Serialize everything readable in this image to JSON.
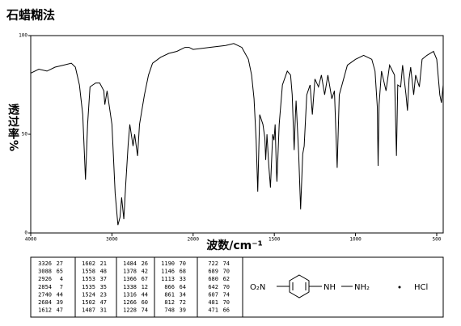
{
  "chart_data": {
    "type": "line",
    "title": "石蜡糊法",
    "x_label": "波数/cm⁻¹",
    "y_label": "透过率%",
    "xlim": [
      4000,
      460
    ],
    "xticks": [
      4000,
      3000,
      2000,
      1500,
      1000,
      500
    ],
    "ylim": [
      0,
      100
    ],
    "yticks": [
      0,
      50,
      100
    ],
    "series": [
      {
        "color": "#000000",
        "x": [
          4000,
          3900,
          3800,
          3700,
          3600,
          3500,
          3450,
          3400,
          3360,
          3326,
          3300,
          3270,
          3200,
          3150,
          3100,
          3088,
          3060,
          3000,
          2960,
          2926,
          2900,
          2880,
          2854,
          2830,
          2800,
          2780,
          2740,
          2720,
          2684,
          2660,
          2600,
          2550,
          2500,
          2400,
          2300,
          2200,
          2100,
          2050,
          2000,
          1900,
          1800,
          1750,
          1700,
          1660,
          1640,
          1625,
          1612,
          1602,
          1590,
          1570,
          1558,
          1553,
          1545,
          1535,
          1524,
          1510,
          1502,
          1495,
          1487,
          1484,
          1470,
          1450,
          1420,
          1400,
          1390,
          1378,
          1370,
          1366,
          1350,
          1338,
          1325,
          1316,
          1300,
          1280,
          1266,
          1250,
          1228,
          1210,
          1190,
          1170,
          1146,
          1130,
          1113,
          1100,
          1050,
          1000,
          950,
          900,
          880,
          866,
          861,
          855,
          840,
          812,
          790,
          760,
          748,
          740,
          722,
          710,
          689,
          680,
          670,
          660,
          642,
          630,
          607,
          590,
          560,
          520,
          500,
          481,
          471,
          460
        ],
        "values": [
          81,
          83,
          82,
          84,
          85,
          86,
          84,
          75,
          60,
          27,
          55,
          74,
          76,
          76,
          72,
          65,
          72,
          55,
          20,
          4,
          8,
          18,
          7,
          25,
          45,
          55,
          44,
          50,
          39,
          55,
          70,
          80,
          86,
          89,
          91,
          92,
          94,
          94,
          93,
          94,
          95,
          96,
          94,
          88,
          80,
          68,
          47,
          21,
          60,
          55,
          48,
          37,
          50,
          35,
          23,
          50,
          47,
          55,
          31,
          26,
          55,
          75,
          82,
          80,
          70,
          42,
          60,
          67,
          40,
          12,
          40,
          44,
          70,
          75,
          60,
          78,
          74,
          80,
          70,
          80,
          68,
          72,
          33,
          70,
          85,
          88,
          90,
          88,
          82,
          64,
          34,
          65,
          82,
          72,
          85,
          80,
          39,
          75,
          74,
          85,
          70,
          62,
          78,
          84,
          70,
          80,
          74,
          88,
          90,
          92,
          88,
          70,
          66,
          75
        ]
      }
    ]
  },
  "table": {
    "columns": [
      [
        [
          "3326",
          "27"
        ],
        [
          "3088",
          "65"
        ],
        [
          "2926",
          "4"
        ],
        [
          "2854",
          "7"
        ],
        [
          "2740",
          "44"
        ],
        [
          "2684",
          "39"
        ],
        [
          "1612",
          "47"
        ]
      ],
      [
        [
          "1602",
          "21"
        ],
        [
          "1558",
          "48"
        ],
        [
          "1553",
          "37"
        ],
        [
          "1535",
          "35"
        ],
        [
          "1524",
          "23"
        ],
        [
          "1502",
          "47"
        ],
        [
          "1487",
          "31"
        ]
      ],
      [
        [
          "1484",
          "26"
        ],
        [
          "1378",
          "42"
        ],
        [
          "1366",
          "67"
        ],
        [
          "1338",
          "12"
        ],
        [
          "1316",
          "44"
        ],
        [
          "1266",
          "60"
        ],
        [
          "1228",
          "74"
        ]
      ],
      [
        [
          "1190",
          "70"
        ],
        [
          "1146",
          "68"
        ],
        [
          "1113",
          "33"
        ],
        [
          "866",
          "64"
        ],
        [
          "861",
          "34"
        ],
        [
          "812",
          "72"
        ],
        [
          "748",
          "39"
        ]
      ],
      [
        [
          "722",
          "74"
        ],
        [
          "689",
          "70"
        ],
        [
          "680",
          "62"
        ],
        [
          "642",
          "70"
        ],
        [
          "607",
          "74"
        ],
        [
          "481",
          "70"
        ],
        [
          "471",
          "66"
        ]
      ]
    ]
  },
  "structure": {
    "left_group": "O₂N",
    "nh": "NH",
    "nh2": "NH₂",
    "salt": "HCl"
  }
}
